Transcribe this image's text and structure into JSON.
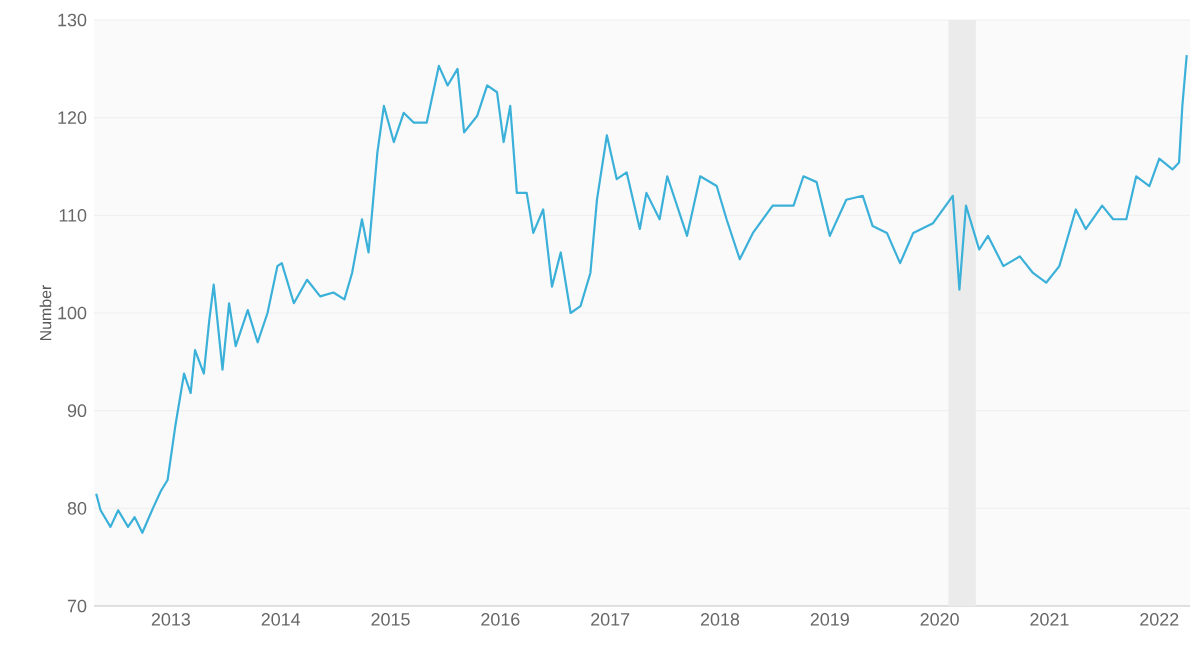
{
  "chart_data": {
    "type": "line",
    "ylabel": "Number",
    "xlim": [
      2012.3,
      2022.28
    ],
    "ylim": [
      70,
      130
    ],
    "xticks": [
      2013,
      2014,
      2015,
      2016,
      2017,
      2018,
      2019,
      2020,
      2021,
      2022
    ],
    "yticks": [
      70,
      80,
      90,
      100,
      110,
      120,
      130
    ],
    "grid": "y",
    "bands": [
      {
        "axis": "x",
        "from": 2020.08,
        "to": 2020.33,
        "color": "#ebebeb"
      }
    ],
    "series": [
      {
        "color": "#3bb0d9",
        "x": [
          2012.32,
          2012.36,
          2012.45,
          2012.52,
          2012.61,
          2012.67,
          2012.74,
          2012.84,
          2012.91,
          2012.97,
          2013.04,
          2013.12,
          2013.18,
          2013.22,
          2013.3,
          2013.35,
          2013.39,
          2013.47,
          2013.53,
          2013.59,
          2013.7,
          2013.79,
          2013.88,
          2013.97,
          2014.01,
          2014.12,
          2014.24,
          2014.36,
          2014.48,
          2014.58,
          2014.65,
          2014.74,
          2014.8,
          2014.88,
          2014.94,
          2015.03,
          2015.12,
          2015.21,
          2015.33,
          2015.44,
          2015.52,
          2015.61,
          2015.67,
          2015.79,
          2015.88,
          2015.97,
          2016.03,
          2016.09,
          2016.15,
          2016.24,
          2016.3,
          2016.39,
          2016.47,
          2016.55,
          2016.64,
          2016.73,
          2016.82,
          2016.88,
          2016.97,
          2017.06,
          2017.15,
          2017.27,
          2017.33,
          2017.45,
          2017.52,
          2017.7,
          2017.82,
          2017.97,
          2018.06,
          2018.18,
          2018.3,
          2018.48,
          2018.67,
          2018.76,
          2018.88,
          2019.0,
          2019.15,
          2019.3,
          2019.39,
          2019.52,
          2019.64,
          2019.76,
          2019.94,
          2020.12,
          2020.18,
          2020.24,
          2020.36,
          2020.44,
          2020.58,
          2020.73,
          2020.85,
          2020.97,
          2021.09,
          2021.24,
          2021.33,
          2021.48,
          2021.58,
          2021.7,
          2021.79,
          2021.91,
          2022.0,
          2022.12,
          2022.18,
          2022.21,
          2022.25
        ],
        "values": [
          81.5,
          79.8,
          78.1,
          79.8,
          78.1,
          79.1,
          77.5,
          80.1,
          81.8,
          82.9,
          88.4,
          93.8,
          91.8,
          96.2,
          93.8,
          99.3,
          102.9,
          94.2,
          101.0,
          96.6,
          100.3,
          97.0,
          100.0,
          104.8,
          105.1,
          101.0,
          103.4,
          101.7,
          102.1,
          101.4,
          104.1,
          109.6,
          106.2,
          116.4,
          121.2,
          117.5,
          120.5,
          119.5,
          119.5,
          125.3,
          123.3,
          125.0,
          118.5,
          120.2,
          123.3,
          122.6,
          117.5,
          121.2,
          112.3,
          112.3,
          108.2,
          110.6,
          102.7,
          106.2,
          100.0,
          100.7,
          104.1,
          111.6,
          118.2,
          113.7,
          114.4,
          108.6,
          112.3,
          109.6,
          114.0,
          107.9,
          114.0,
          113.0,
          109.6,
          105.5,
          108.2,
          111.0,
          111.0,
          114.0,
          113.4,
          107.9,
          111.6,
          112.0,
          108.9,
          108.2,
          105.1,
          108.2,
          109.2,
          112.0,
          102.4,
          111.0,
          106.5,
          107.9,
          104.8,
          105.8,
          104.1,
          103.1,
          104.8,
          110.6,
          108.6,
          111.0,
          109.6,
          109.6,
          114.0,
          113.0,
          115.8,
          114.7,
          115.4,
          121.2,
          126.4
        ]
      }
    ]
  }
}
